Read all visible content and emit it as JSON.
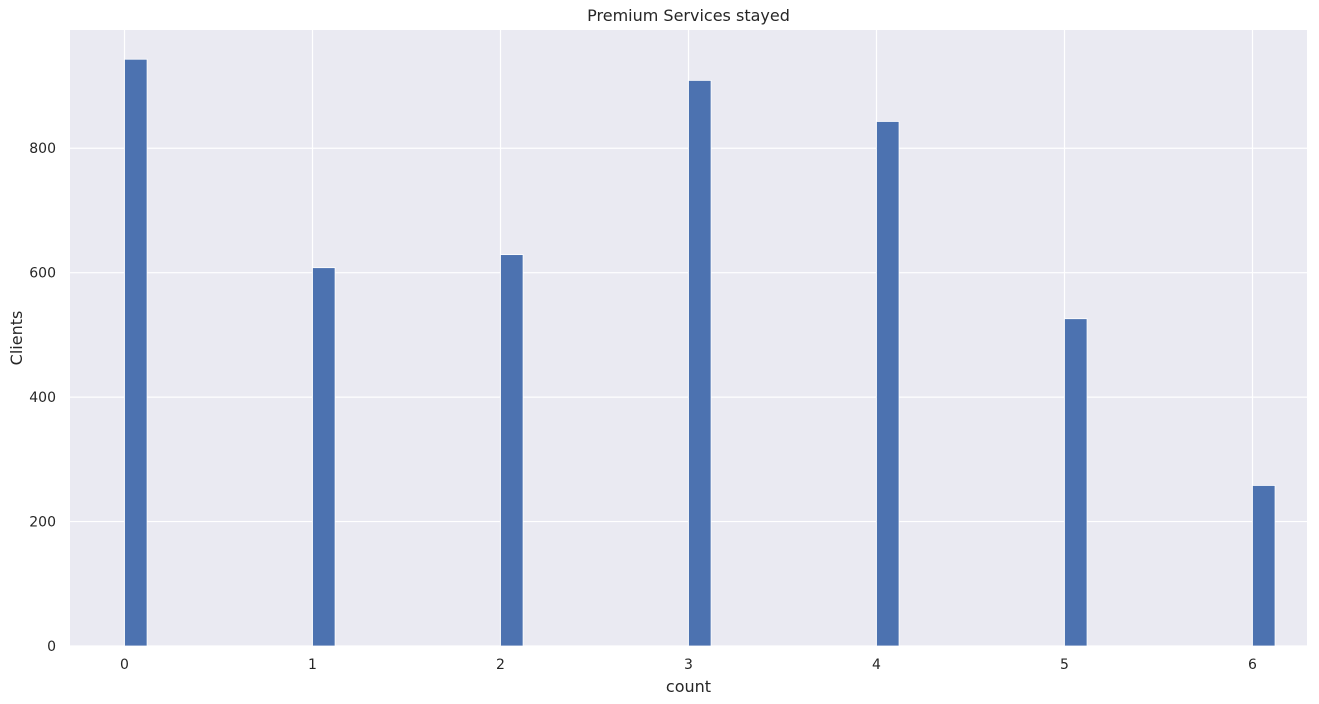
{
  "chart_data": {
    "type": "bar",
    "title": "Premium Services stayed",
    "xlabel": "count",
    "ylabel": "Clients",
    "x": [
      0,
      1,
      2,
      3,
      4,
      5,
      6
    ],
    "values": [
      943,
      608,
      629,
      909,
      843,
      526,
      258
    ],
    "xticks": [
      "0",
      "1",
      "2",
      "3",
      "4",
      "5",
      "6"
    ],
    "yticks": [
      "0",
      "200",
      "400",
      "600",
      "800"
    ],
    "xlim": [
      -0.29,
      6.29
    ],
    "ylim": [
      0,
      990
    ],
    "grid": true,
    "legend": "none",
    "colors": {
      "bar": "#4c72b0",
      "plot_background": "#eaeaf2",
      "grid": "#ffffff",
      "text": "#262626"
    }
  }
}
